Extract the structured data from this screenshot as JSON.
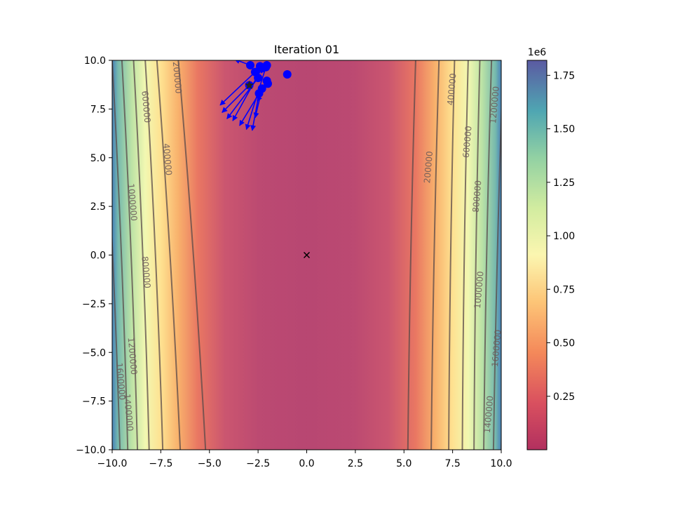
{
  "chart_data": {
    "type": "contour",
    "title": "Iteration 01",
    "xlabel": "",
    "ylabel": "",
    "xlim": [
      -10,
      10
    ],
    "ylim": [
      -10,
      10
    ],
    "x_ticks": [
      -10.0,
      -7.5,
      -5.0,
      -2.5,
      0.0,
      2.5,
      5.0,
      7.5,
      10.0
    ],
    "x_tick_labels": [
      "−10.0",
      "−7.5",
      "−5.0",
      "−2.5",
      "0.0",
      "2.5",
      "5.0",
      "7.5",
      "10.0"
    ],
    "y_ticks": [
      -10.0,
      -7.5,
      -5.0,
      -2.5,
      0.0,
      2.5,
      5.0,
      7.5,
      10.0
    ],
    "y_tick_labels": [
      "−10.0",
      "−7.5",
      "−5.0",
      "−2.5",
      "0.0",
      "2.5",
      "5.0",
      "7.5",
      "10.0"
    ],
    "colormap": "Spectral_r",
    "colorbar": {
      "range": [
        0,
        1820000
      ],
      "ticks": [
        250000,
        500000,
        750000,
        1000000,
        1250000,
        1500000,
        1750000
      ],
      "tick_labels": [
        "0.25",
        "0.50",
        "0.75",
        "1.00",
        "1.25",
        "1.50",
        "1.75"
      ],
      "offset_label": "1e6"
    },
    "contour_levels": [
      200000,
      400000,
      600000,
      800000,
      1000000,
      1200000,
      1400000,
      1600000
    ],
    "contour_labels": [
      {
        "text": "200000",
        "x": -6.8,
        "y": 9.1
      },
      {
        "text": "600000",
        "x": -8.4,
        "y": 7.6
      },
      {
        "text": "400000",
        "x": -7.3,
        "y": 4.9
      },
      {
        "text": "1000000",
        "x": -9.1,
        "y": 2.7
      },
      {
        "text": "800000",
        "x": -8.4,
        "y": -0.9
      },
      {
        "text": "1200000",
        "x": -9.1,
        "y": -5.2
      },
      {
        "text": "1600000",
        "x": -9.7,
        "y": -6.5
      },
      {
        "text": "1400000",
        "x": -9.3,
        "y": -8.1
      },
      {
        "text": "400000",
        "x": 7.6,
        "y": 8.5
      },
      {
        "text": "1200000",
        "x": 9.8,
        "y": 7.7
      },
      {
        "text": "600000",
        "x": 8.4,
        "y": 5.8
      },
      {
        "text": "200000",
        "x": 6.4,
        "y": 4.5
      },
      {
        "text": "800000",
        "x": 8.9,
        "y": 3.0
      },
      {
        "text": "1000000",
        "x": 9.0,
        "y": -1.8
      },
      {
        "text": "1600000",
        "x": 9.9,
        "y": -4.8
      },
      {
        "text": "1400000",
        "x": 9.5,
        "y": -8.2
      }
    ],
    "minimum_marker": {
      "x": 0.0,
      "y": 0.0
    },
    "best_point": {
      "x": -2.95,
      "y": 8.72
    },
    "particles": [
      {
        "x": -2.95,
        "y": 8.72,
        "dx": -1.4,
        "dy": -1.4
      },
      {
        "x": -2.65,
        "y": 9.4,
        "dx": -1.8,
        "dy": -1.7
      },
      {
        "x": -2.5,
        "y": 9.1,
        "dx": -1.6,
        "dy": -2.1
      },
      {
        "x": -2.3,
        "y": 9.6,
        "dx": -1.5,
        "dy": -2.7
      },
      {
        "x": -2.05,
        "y": 8.95,
        "dx": -1.4,
        "dy": -2.3
      },
      {
        "x": -2.1,
        "y": 9.65,
        "dx": -1.0,
        "dy": -3.2
      },
      {
        "x": -2.45,
        "y": 8.3,
        "dx": -0.35,
        "dy": -1.9
      },
      {
        "x": -2.3,
        "y": 8.55,
        "dx": -0.35,
        "dy": -1.5
      },
      {
        "x": -2.0,
        "y": 8.8,
        "dx": -0.55,
        "dy": -0.9
      },
      {
        "x": -2.05,
        "y": 9.75,
        "dx": -0.3,
        "dy": -0.4
      },
      {
        "x": -2.9,
        "y": 9.75,
        "dx": -0.8,
        "dy": 0.3
      },
      {
        "x": -2.4,
        "y": 9.7,
        "dx": 0.1,
        "dy": 0.05
      },
      {
        "x": -1.0,
        "y": 9.28,
        "dx": 0,
        "dy": 0
      }
    ]
  }
}
